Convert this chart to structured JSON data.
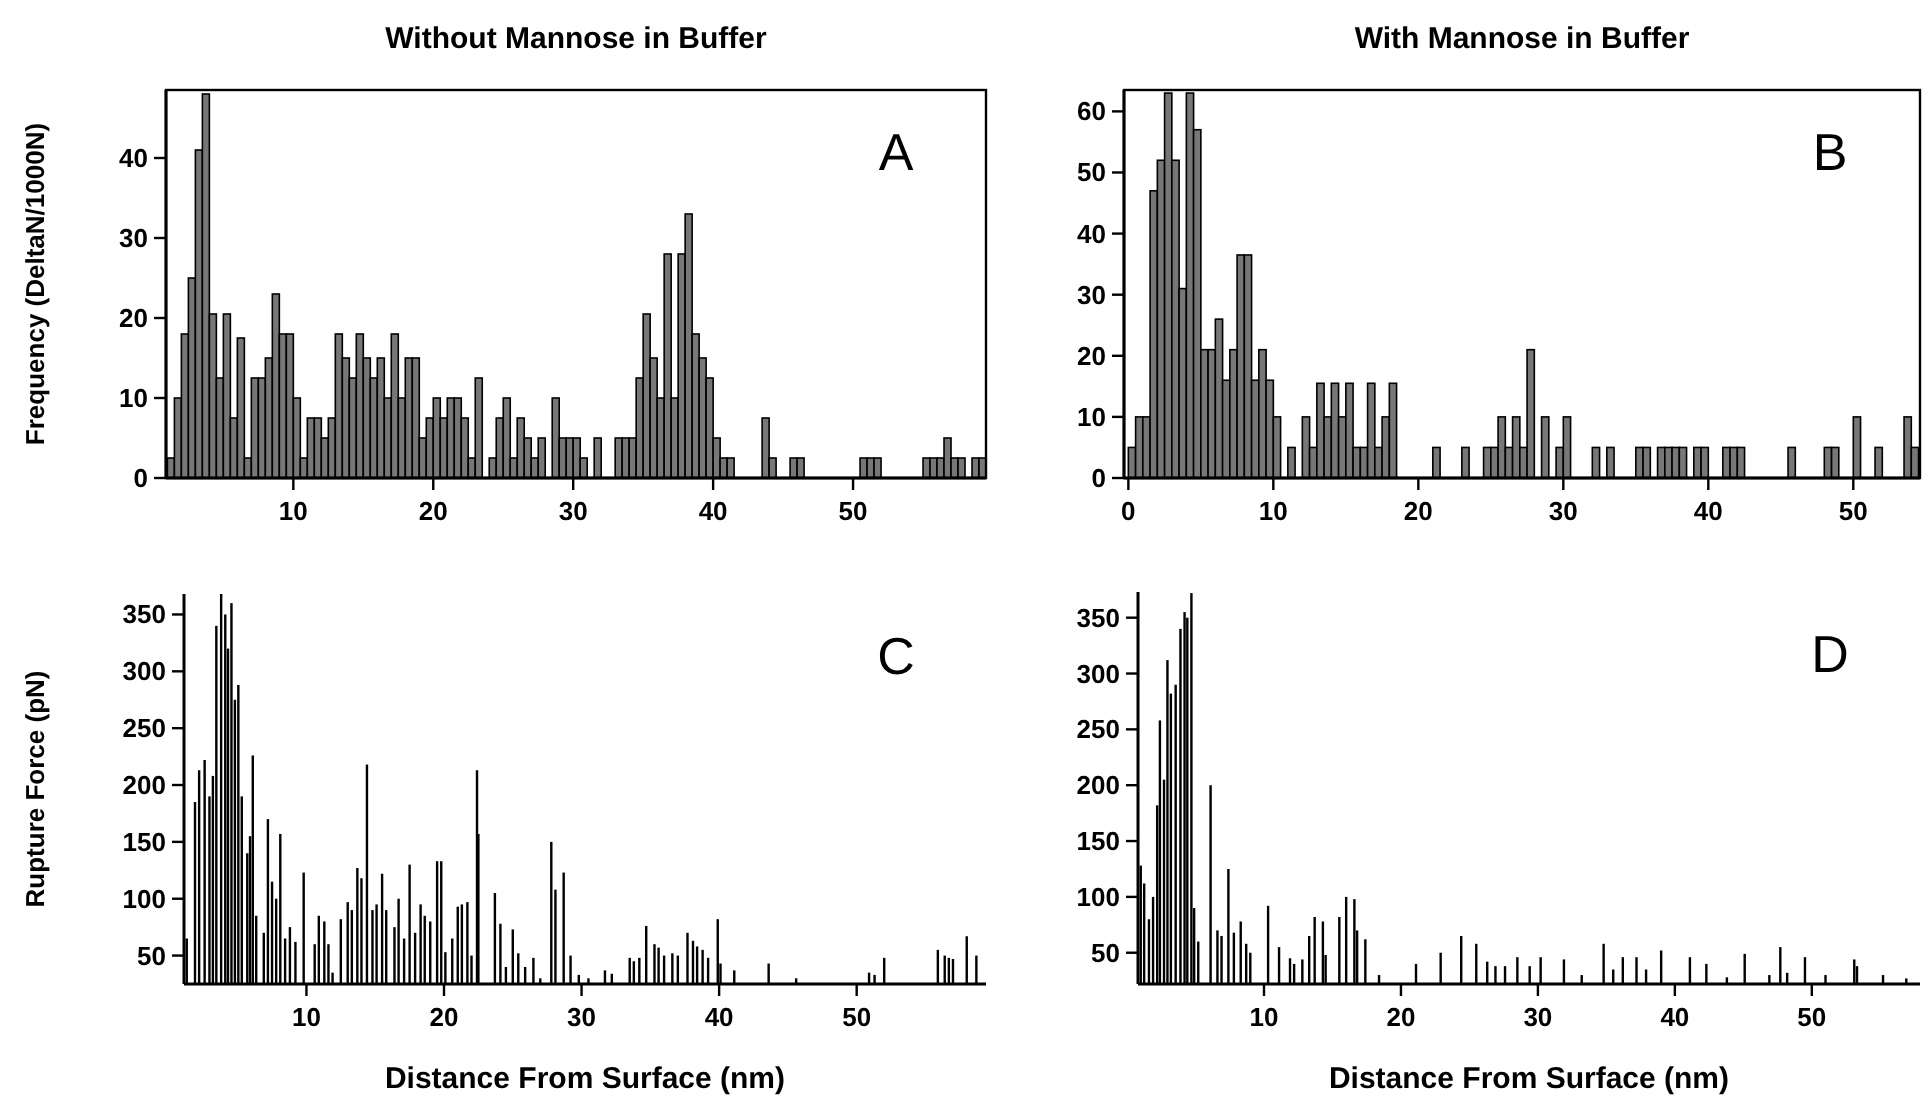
{
  "chart_data": [
    {
      "type": "histogram",
      "title": "Without Mannose in Buffer",
      "ylabel": "Frequency (DeltaN/1000N)",
      "annotations": [
        "A"
      ],
      "bins": [
        1,
        1.5,
        2,
        2.5,
        3,
        3.5,
        4,
        4.5,
        5,
        5.5,
        6,
        6.5,
        7,
        7.5,
        8,
        8.5,
        9,
        9.5,
        10,
        10.5,
        11,
        11.5,
        12,
        12.5,
        13,
        13.5,
        14,
        14.5,
        15,
        15.5,
        16,
        16.5,
        17,
        17.5,
        18,
        18.5,
        19,
        19.5,
        20,
        20.5,
        21,
        21.5,
        22,
        22.5,
        23,
        23.5,
        24,
        24.5,
        25,
        25.5,
        26,
        26.5,
        27,
        27.5,
        28,
        28.5,
        29,
        29.5,
        30,
        30.5,
        31,
        31.5,
        32,
        32.5,
        33,
        33.5,
        34,
        34.5,
        35,
        35.5,
        36,
        36.5,
        37,
        37.5,
        38,
        38.5,
        39,
        39.5,
        40,
        40.5,
        41,
        41.5,
        42,
        42.5,
        43,
        43.5,
        44,
        44.5,
        45,
        45.5,
        46,
        46.5,
        47,
        47.5,
        48,
        48.5,
        49,
        49.5,
        50,
        50.5,
        51,
        51.5,
        52,
        52.5,
        53,
        53.5,
        54,
        54.5,
        55,
        55.5,
        56,
        56.5,
        57,
        57.5,
        58,
        58.5,
        59,
        59.5
      ],
      "values": [
        2.5,
        10,
        18,
        25,
        41,
        48,
        20.5,
        12.5,
        20.5,
        7.5,
        17.5,
        2.5,
        12.5,
        12.5,
        15,
        23,
        18,
        18,
        10,
        2.5,
        7.5,
        7.5,
        5,
        7.5,
        18,
        15,
        12.5,
        18,
        15,
        12.5,
        15,
        10,
        18,
        10,
        15,
        15,
        5,
        7.5,
        10,
        7.5,
        10,
        10,
        7.5,
        2.5,
        12.5,
        0,
        2.5,
        7.5,
        10,
        2.5,
        7.5,
        5,
        2.5,
        5,
        0,
        10,
        5,
        5,
        5,
        2.5,
        0,
        5,
        0,
        0,
        5,
        5,
        5,
        12.5,
        20.5,
        15,
        10,
        28,
        10,
        28,
        33,
        18,
        15,
        12.5,
        5,
        2.5,
        2.5,
        0,
        0,
        0,
        0,
        7.5,
        2.5,
        0,
        0,
        2.5,
        2.5,
        0,
        0,
        0,
        0,
        0,
        0,
        0,
        0,
        2.5,
        2.5,
        2.5,
        0,
        0,
        0,
        0,
        0,
        0,
        2.5,
        2.5,
        2.5,
        5,
        2.5,
        2.5,
        0,
        2.5,
        2.5
      ],
      "color": "#777777",
      "xlim": [
        0.9,
        59.5
      ],
      "xticks": [
        10,
        20,
        30,
        40,
        50
      ],
      "ylim": [
        0,
        48.5
      ],
      "yticks": [
        0,
        10,
        20,
        30,
        40
      ]
    },
    {
      "type": "histogram",
      "title": "With Mannose in Buffer",
      "annotations": [
        "B"
      ],
      "bins": [
        0,
        0.5,
        1,
        1.5,
        2,
        2.5,
        3,
        3.5,
        4,
        4.5,
        5,
        5.5,
        6,
        6.5,
        7,
        7.5,
        8,
        8.5,
        9,
        9.5,
        10,
        10.5,
        11,
        11.5,
        12,
        12.5,
        13,
        13.5,
        14,
        14.5,
        15,
        15.5,
        16,
        16.5,
        17,
        17.5,
        18,
        18.5,
        19,
        19.5,
        20,
        20.5,
        21,
        21.5,
        22,
        22.5,
        23,
        23.5,
        24,
        24.5,
        25,
        25.5,
        26,
        26.5,
        27,
        27.5,
        28,
        28.5,
        29,
        29.5,
        30,
        30.5,
        31,
        31.5,
        32,
        32.5,
        33,
        33.5,
        34,
        34.5,
        35,
        35.5,
        36,
        36.5,
        37,
        37.5,
        38,
        38.5,
        39,
        39.5,
        40,
        40.5,
        41,
        41.5,
        42,
        42.5,
        43,
        43.5,
        44,
        44.5,
        45,
        45.5,
        46,
        46.5,
        47,
        47.5,
        48,
        48.5,
        49,
        49.5,
        50,
        50.5,
        51,
        51.5,
        52,
        52.5,
        53,
        53.5,
        54,
        54.5
      ],
      "values": [
        5,
        10,
        10,
        47,
        52,
        63,
        52,
        31,
        63,
        57,
        21,
        21,
        26,
        16,
        21,
        36.5,
        36.5,
        16,
        21,
        16,
        10,
        0,
        5,
        0,
        10,
        5,
        15.5,
        10,
        15.5,
        10,
        15.5,
        5,
        5,
        15.5,
        5,
        10,
        15.5,
        0,
        0,
        0,
        0,
        0,
        5,
        0,
        0,
        0,
        5,
        0,
        0,
        5,
        5,
        10,
        5,
        10,
        5,
        21,
        0,
        10,
        0,
        5,
        10,
        0,
        0,
        0,
        5,
        0,
        5,
        0,
        0,
        0,
        5,
        5,
        0,
        5,
        5,
        5,
        5,
        0,
        5,
        5,
        0,
        0,
        5,
        5,
        5,
        0,
        0,
        0,
        0,
        0,
        0,
        5,
        0,
        0,
        0,
        0,
        5,
        5,
        0,
        0,
        10,
        0,
        0,
        5,
        0,
        0,
        0,
        10,
        5
      ],
      "color": "#777777",
      "xlim": [
        -0.3,
        54.6
      ],
      "xticks": [
        0,
        10,
        20,
        30,
        40,
        50
      ],
      "ylim": [
        0,
        63.5
      ],
      "yticks": [
        0,
        10,
        20,
        30,
        40,
        50,
        60
      ]
    },
    {
      "type": "bar",
      "ylabel": "Rupture Force (pN)",
      "xlabel": "Distance From Surface (nm)",
      "annotations": [
        "C"
      ],
      "x": [
        1.3,
        1.9,
        2.2,
        2.6,
        2.95,
        3.2,
        3.45,
        3.8,
        4.1,
        4.3,
        4.55,
        4.8,
        5.05,
        5.3,
        5.7,
        5.9,
        6.1,
        6.35,
        6.9,
        7.2,
        7.5,
        7.8,
        8.1,
        8.45,
        8.8,
        9.2,
        9.8,
        10.6,
        10.9,
        11.3,
        11.6,
        11.9,
        12.5,
        13,
        13.3,
        13.7,
        14,
        14.4,
        14.8,
        15.1,
        15.5,
        15.8,
        16.4,
        16.7,
        17.1,
        17.5,
        17.9,
        18.3,
        18.6,
        19,
        19.5,
        19.8,
        20.1,
        20.6,
        21,
        21.3,
        21.7,
        22,
        22.4,
        22.5,
        23.7,
        24.1,
        24.5,
        25,
        25.4,
        25.9,
        26.5,
        27,
        27.8,
        28.1,
        28.7,
        29.2,
        29.8,
        30.5,
        31.7,
        32.2,
        33.5,
        33.8,
        34.2,
        34.7,
        35.3,
        35.6,
        36,
        36.6,
        37,
        37.7,
        38.1,
        38.4,
        38.8,
        39.2,
        39.9,
        40.1,
        41.1,
        43.6,
        45.6,
        50.9,
        51.3,
        52,
        55.9,
        56.4,
        56.7,
        57,
        58,
        58.7
      ],
      "values": [
        65,
        185,
        213,
        222,
        190,
        208,
        340,
        368,
        350,
        320,
        360,
        275,
        288,
        190,
        140,
        155,
        226,
        85,
        70,
        170,
        115,
        100,
        157,
        65,
        75,
        62,
        123,
        60,
        85,
        80,
        60,
        35,
        82,
        97,
        90,
        127,
        118,
        218,
        90,
        95,
        122,
        90,
        75,
        100,
        65,
        130,
        70,
        95,
        85,
        80,
        133,
        133,
        53,
        65,
        93,
        95,
        97,
        50,
        213,
        157,
        105,
        78,
        40,
        73,
        52,
        40,
        48,
        30,
        150,
        108,
        123,
        50,
        33,
        30,
        37,
        34,
        48,
        45,
        48,
        76,
        60,
        57,
        50,
        52,
        50,
        70,
        63,
        58,
        55,
        48,
        82,
        43,
        37,
        43,
        30,
        35,
        33,
        48,
        55,
        50,
        48,
        47,
        67,
        50
      ],
      "color": "#000000",
      "xlim": [
        1.1,
        59.4
      ],
      "xticks": [
        10,
        20,
        30,
        40,
        50
      ],
      "ylim": [
        25,
        368
      ],
      "yticks": [
        50,
        100,
        150,
        200,
        250,
        300,
        350
      ]
    },
    {
      "type": "bar",
      "xlabel": "Distance From Surface (nm)",
      "annotations": [
        "D"
      ],
      "x": [
        1,
        1.25,
        1.6,
        1.9,
        2.2,
        2.4,
        2.7,
        2.95,
        3.2,
        3.55,
        3.9,
        4.2,
        4.4,
        4.7,
        4.9,
        5.2,
        6.1,
        6.6,
        6.9,
        7.4,
        7.8,
        8.3,
        8.7,
        9,
        10.3,
        11.1,
        11.9,
        12.2,
        12.8,
        13.3,
        13.7,
        14.3,
        14.5,
        15.5,
        16,
        16.6,
        16.8,
        17.4,
        18.4,
        21.1,
        22.9,
        24.4,
        25.5,
        26.3,
        26.9,
        27.6,
        28.5,
        29.4,
        30.2,
        31.9,
        33.2,
        34.8,
        35.5,
        36.2,
        37.2,
        37.9,
        39,
        41.1,
        42.3,
        43.8,
        45.1,
        46.9,
        47.7,
        48.2,
        49.5,
        51,
        53.1,
        53.3,
        55.2,
        56.9
      ],
      "values": [
        128,
        112,
        80,
        100,
        182,
        258,
        205,
        312,
        282,
        290,
        340,
        355,
        350,
        372,
        90,
        60,
        200,
        70,
        65,
        125,
        68,
        78,
        58,
        50,
        92,
        55,
        45,
        40,
        44,
        65,
        82,
        78,
        48,
        82,
        100,
        98,
        70,
        62,
        30,
        40,
        50,
        65,
        58,
        42,
        38,
        38,
        46,
        38,
        46,
        44,
        30,
        58,
        35,
        46,
        46,
        35,
        52,
        46,
        40,
        28,
        49,
        30,
        55,
        32,
        46,
        30,
        44,
        38,
        30,
        27
      ],
      "color": "#000000",
      "xlim": [
        0.8,
        57.9
      ],
      "xticks": [
        10,
        20,
        30,
        40,
        50
      ],
      "ylim": [
        22,
        373
      ],
      "yticks": [
        50,
        100,
        150,
        200,
        250,
        300,
        350
      ]
    }
  ]
}
